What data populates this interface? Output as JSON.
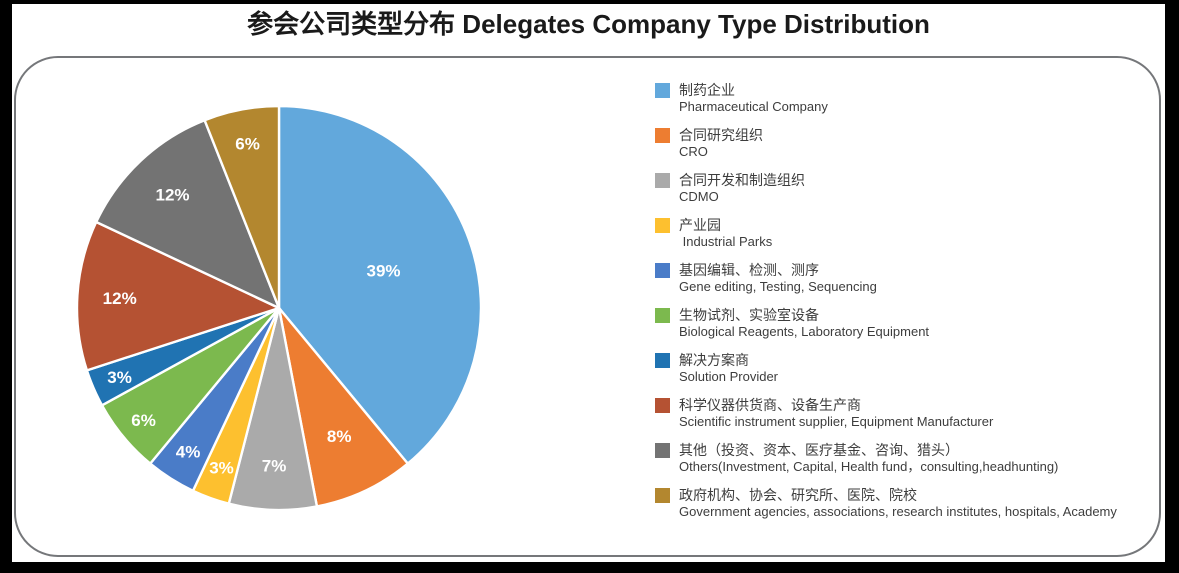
{
  "page": {
    "title": "参会公司类型分布 Delegates Company Type Distribution"
  },
  "chart_data": {
    "type": "pie",
    "title": "参会公司类型分布 Delegates Company Type Distribution",
    "legend_position": "right",
    "start_angle_deg": -90,
    "direction": "clockwise",
    "values_sum": 100,
    "slices": [
      {
        "label_zh": "制药企业",
        "label_en": "Pharmaceutical Company",
        "value": 39,
        "display": "39%",
        "color": "#62A8DC"
      },
      {
        "label_zh": "合同研究组织",
        "label_en": "CRO",
        "value": 8,
        "display": "8%",
        "color": "#ED7D31"
      },
      {
        "label_zh": "合同开发和制造组织",
        "label_en": "CDMO",
        "value": 7,
        "display": "7%",
        "color": "#AAAAAA"
      },
      {
        "label_zh": "产业园",
        "label_en": " Industrial Parks",
        "value": 3,
        "display": "3%",
        "color": "#FDC02F"
      },
      {
        "label_zh": "基因编辑、检测、测序",
        "label_en": "Gene editing, Testing, Sequencing",
        "value": 4,
        "display": "4%",
        "color": "#4A7CC8"
      },
      {
        "label_zh": "生物试剂、实验室设备",
        "label_en": "Biological Reagents, Laboratory Equipment",
        "value": 6,
        "display": "6%",
        "color": "#7CB94E"
      },
      {
        "label_zh": "解决方案商",
        "label_en": "Solution Provider",
        "value": 3,
        "display": "3%",
        "color": "#2073B2"
      },
      {
        "label_zh": "科学仪器供货商、设备生产商",
        "label_en": "Scientific instrument supplier, Equipment Manufacturer",
        "value": 12,
        "display": "12%",
        "color": "#B55233"
      },
      {
        "label_zh": "其他（投资、资本、医疗基金、咨询、猎头）",
        "label_en": "Others(Investment, Capital, Health fund，consulting,headhunting)",
        "value": 12,
        "display": "12%",
        "color": "#737373"
      },
      {
        "label_zh": "政府机构、协会、研究所、医院、院校",
        "label_en": "Government agencies, associations, research institutes, hospitals, Academy",
        "value": 6,
        "display": "6%",
        "color": "#B3872F"
      }
    ]
  }
}
